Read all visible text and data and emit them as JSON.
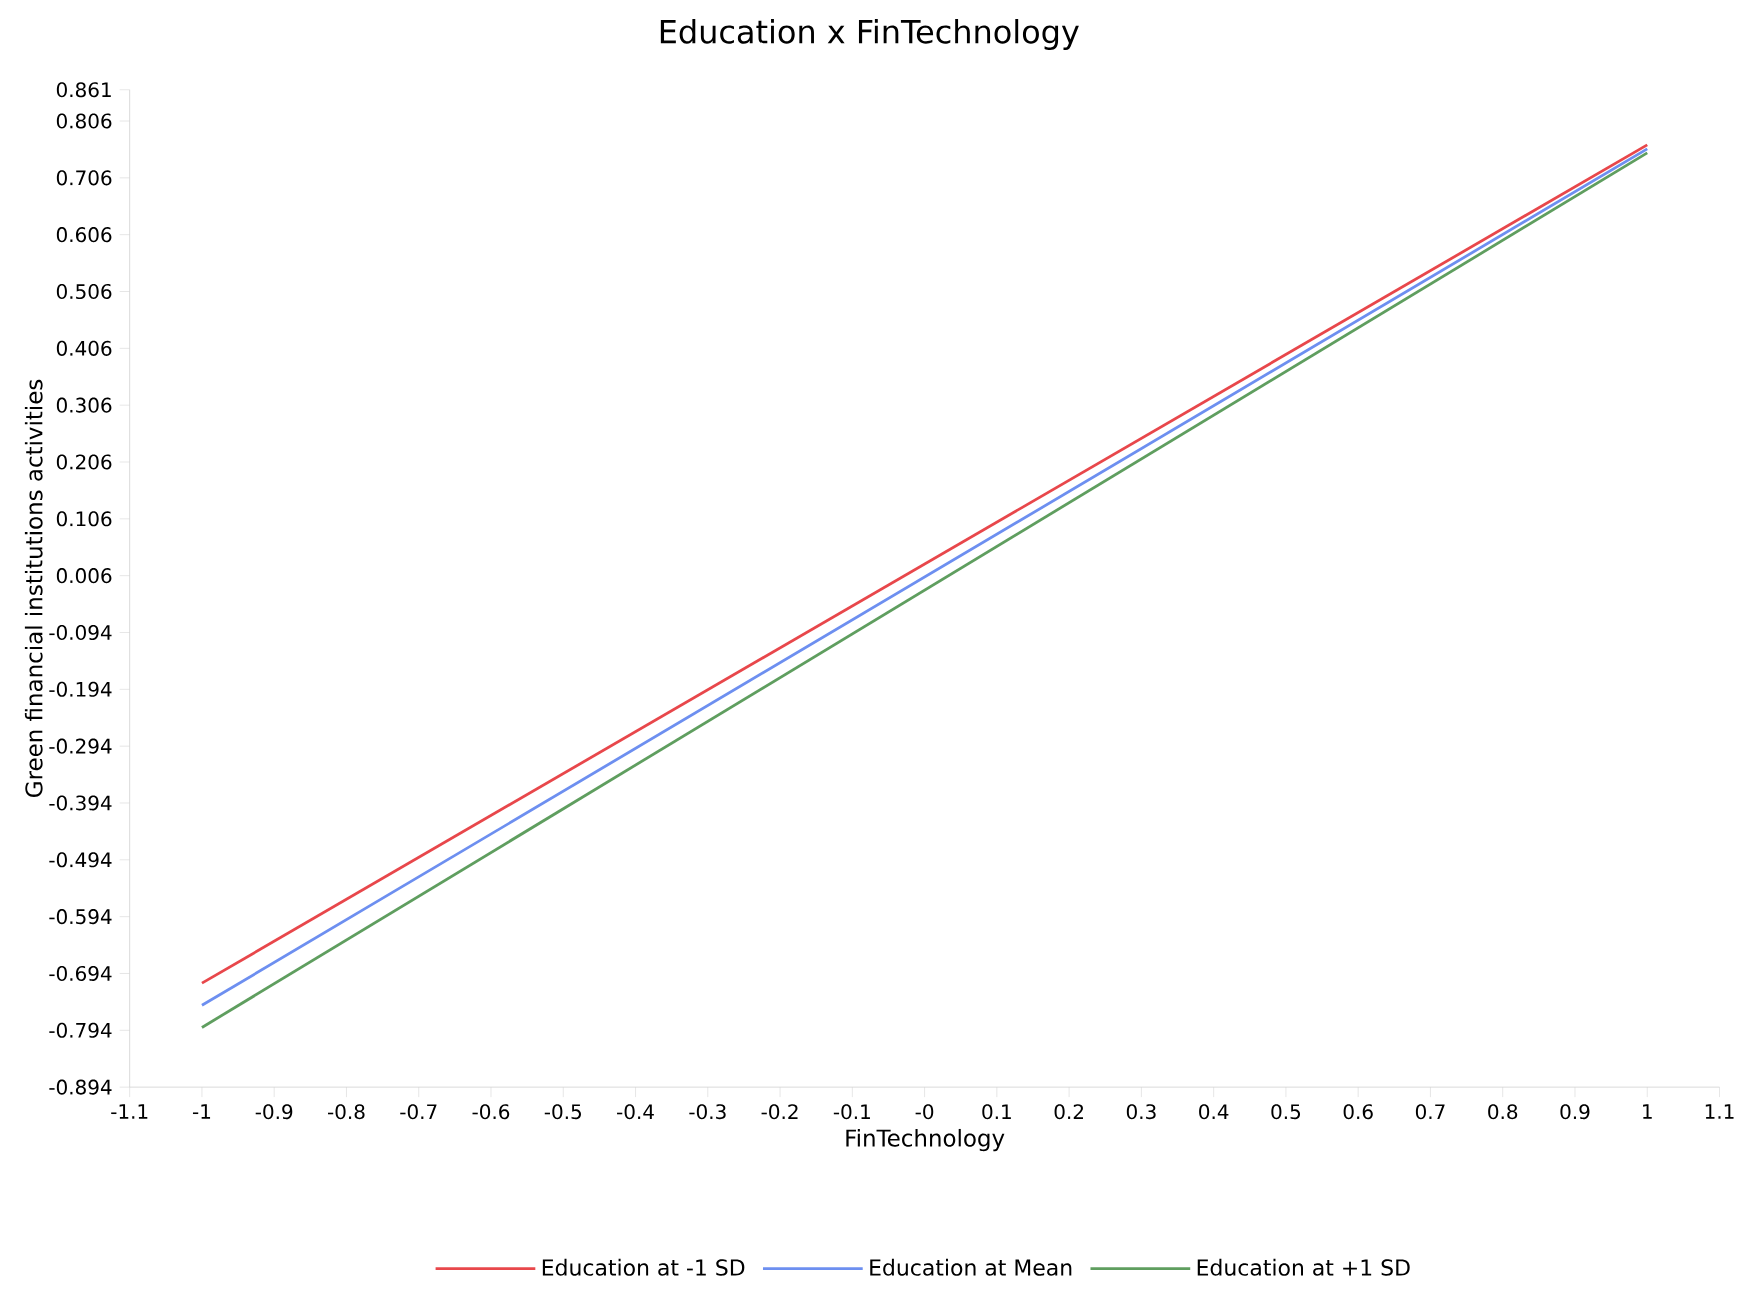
{
  "chart_data": {
    "type": "line",
    "title": "Education x FinTechnology",
    "xlabel": "FinTechnology",
    "ylabel": "Green financial institutions activities",
    "xlim": [
      -1.1,
      1.1
    ],
    "ylim": [
      -0.894,
      0.861
    ],
    "xticks": [
      -1.1,
      -1,
      -0.9,
      -0.8,
      -0.7,
      -0.6,
      -0.5,
      -0.4,
      -0.3,
      -0.2,
      -0.1,
      {
        "value": 0,
        "label": "-0"
      },
      0.1,
      0.2,
      0.3,
      0.4,
      0.5,
      0.6,
      0.7,
      0.8,
      0.9,
      1,
      1.1
    ],
    "yticks": [
      -0.894,
      -0.794,
      -0.694,
      -0.594,
      -0.494,
      -0.394,
      -0.294,
      -0.194,
      -0.094,
      0.006,
      0.106,
      0.206,
      0.306,
      0.406,
      0.506,
      0.606,
      0.706,
      0.806,
      0.861
    ],
    "x": [
      -1,
      1
    ],
    "series": [
      {
        "name": "Education at -1 SD",
        "color": "#e8474b",
        "values": [
          -0.711,
          0.764
        ]
      },
      {
        "name": "Education at Mean",
        "color": "#6d8ff0",
        "values": [
          -0.75,
          0.757
        ]
      },
      {
        "name": "Education at +1 SD",
        "color": "#5f9e5f",
        "values": [
          -0.789,
          0.75
        ]
      }
    ],
    "legend": "bottom",
    "grid": false,
    "line_style": "solid"
  }
}
